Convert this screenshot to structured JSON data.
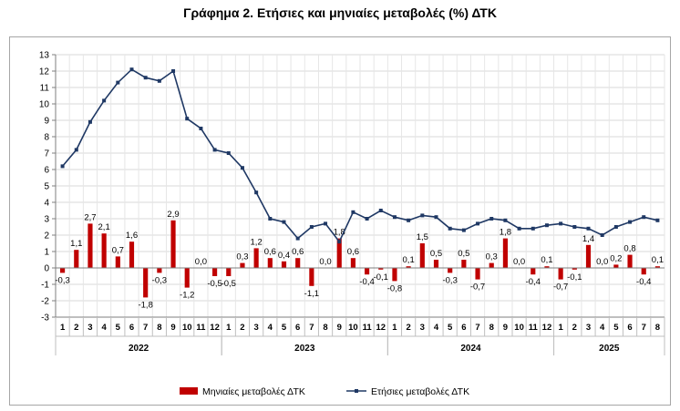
{
  "chart_data": {
    "type": "bar+line",
    "title": "Γράφημα 2. Ετήσιες και μηνιαίες μεταβολές (%) ΔΤΚ",
    "y_ticks": [
      "13",
      "12",
      "11",
      "10",
      "9",
      "8",
      "7",
      "6",
      "5",
      "4",
      "3",
      "2",
      "1",
      "0",
      "-1",
      "-2",
      "-3"
    ],
    "ylim": [
      -3,
      13
    ],
    "grid": true,
    "legend_position": "bottom",
    "months": [
      "1",
      "2",
      "3",
      "4",
      "5",
      "6",
      "7",
      "8",
      "9",
      "10",
      "11",
      "12",
      "1",
      "2",
      "3",
      "4",
      "5",
      "6",
      "7",
      "8",
      "9",
      "10",
      "11",
      "12",
      "1",
      "2",
      "3",
      "4",
      "5",
      "6",
      "7",
      "8",
      "9",
      "10",
      "11",
      "12",
      "1",
      "2",
      "3",
      "4",
      "5",
      "6",
      "7",
      "8"
    ],
    "years": [
      {
        "label": "2022",
        "count": 12
      },
      {
        "label": "2023",
        "count": 12
      },
      {
        "label": "2024",
        "count": 12
      },
      {
        "label": "2025",
        "count": 8
      }
    ],
    "series": [
      {
        "name": "Μηνιαίες μεταβολές ΔΤΚ",
        "kind": "bar",
        "color": "#c00000",
        "values": [
          -0.3,
          1.1,
          2.7,
          2.1,
          0.7,
          1.6,
          -1.8,
          -0.3,
          2.9,
          -1.2,
          0.0,
          -0.5,
          -0.5,
          0.3,
          1.2,
          0.6,
          0.4,
          0.6,
          -1.1,
          0.0,
          1.8,
          0.6,
          -0.4,
          -0.1,
          -0.8,
          0.1,
          1.5,
          0.5,
          -0.3,
          0.5,
          -0.7,
          0.3,
          1.8,
          0.0,
          -0.4,
          0.1,
          -0.7,
          -0.1,
          1.4,
          0.0,
          0.2,
          0.8,
          -0.4,
          0.1
        ],
        "labels": [
          "-0,3",
          "1,1",
          "2,7",
          "2,1",
          "0,7",
          "1,6",
          "-1,8",
          "-0,3",
          "2,9",
          "-1,2",
          "0,0",
          "-0,5",
          "-0,5",
          "0,3",
          "1,2",
          "0,6",
          "0,4",
          "0,6",
          "-1,1",
          "0,0",
          "1,8",
          "0,6",
          "-0,4",
          "-0,1",
          "-0,8",
          "0,1",
          "1,5",
          "0,5",
          "-0,3",
          "0,5",
          "-0,7",
          "0,3",
          "1,8",
          "0,0",
          "-0,4",
          "0,1",
          "-0,7",
          "-0,1",
          "1,4",
          "0,0",
          "0,2",
          "0,8",
          "-0,4",
          "0,1"
        ]
      },
      {
        "name": "Ετήσιες μεταβολές ΔΤΚ",
        "kind": "line",
        "color": "#1f3864",
        "values": [
          6.2,
          7.2,
          8.9,
          10.2,
          11.3,
          12.1,
          11.6,
          11.4,
          12.0,
          9.1,
          8.5,
          7.2,
          7.0,
          6.1,
          4.6,
          3.0,
          2.8,
          1.8,
          2.5,
          2.7,
          1.6,
          3.4,
          3.0,
          3.5,
          3.1,
          2.9,
          3.2,
          3.1,
          2.4,
          2.3,
          2.7,
          3.0,
          2.9,
          2.4,
          2.4,
          2.6,
          2.7,
          2.5,
          2.4,
          2.0,
          2.5,
          2.8,
          3.1,
          2.9
        ]
      }
    ]
  }
}
